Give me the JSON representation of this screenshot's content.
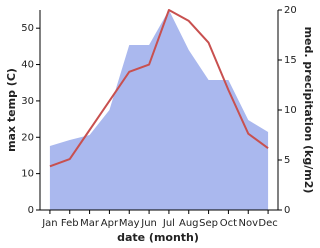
{
  "chart_data": {
    "type": "line-area",
    "x_label": "date (month)",
    "y_label": "max temp (C)",
    "y2_label": "med. precipitation (kg/m2)",
    "categories": [
      "Jan",
      "Feb",
      "Mar",
      "Apr",
      "May",
      "Jun",
      "Jul",
      "Aug",
      "Sep",
      "Oct",
      "Nov",
      "Dec"
    ],
    "ylim": [
      0,
      55
    ],
    "yticks": [
      0,
      10,
      20,
      30,
      40,
      50
    ],
    "y2lim": [
      0,
      20
    ],
    "y2ticks": [
      0,
      5,
      10,
      15,
      20
    ],
    "series": [
      {
        "name": "max temp",
        "type": "line",
        "color": "#c8504f",
        "values": [
          12,
          14,
          22,
          30,
          38,
          40,
          55,
          52,
          46,
          33,
          21,
          17
        ]
      },
      {
        "name": "med. precipitation",
        "type": "area",
        "axis": "y2",
        "color": "#aab8ee",
        "values": [
          6.4,
          7,
          7.5,
          10,
          16.5,
          16.5,
          20,
          16,
          13,
          13,
          9,
          7.8
        ]
      }
    ]
  }
}
